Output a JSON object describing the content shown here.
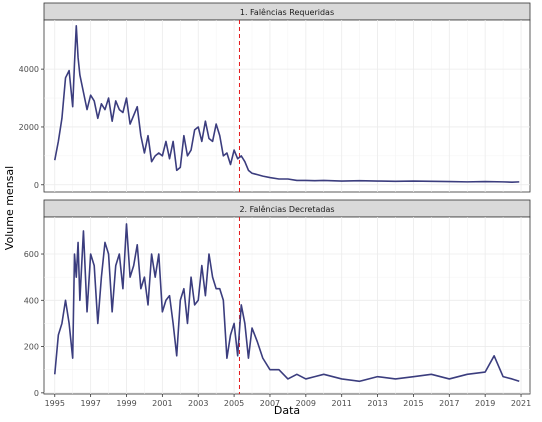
{
  "chart_data": {
    "type": "line",
    "xlabel": "Data",
    "ylabel": "Volume mensal",
    "x_range": [
      1994.4,
      2021.5
    ],
    "x_ticks": [
      "1995",
      "1997",
      "1999",
      "2001",
      "2003",
      "2005",
      "2007",
      "2009",
      "2011",
      "2013",
      "2015",
      "2017",
      "2019",
      "2021"
    ],
    "vline": {
      "x": 2005.3,
      "style": "dashed",
      "color": "#e41a1c"
    },
    "grid": true,
    "line_color": "#3b3d7e",
    "facets": [
      {
        "strip": "1. Falências Requeridas",
        "ylim": [
          -250,
          5700
        ],
        "y_ticks": [
          0,
          2000,
          4000
        ],
        "x": [
          1995.0,
          1995.2,
          1995.4,
          1995.6,
          1995.8,
          1996.0,
          1996.1,
          1996.2,
          1996.3,
          1996.4,
          1996.6,
          1996.8,
          1997.0,
          1997.2,
          1997.4,
          1997.6,
          1997.8,
          1998.0,
          1998.2,
          1998.4,
          1998.6,
          1998.8,
          1999.0,
          1999.2,
          1999.4,
          1999.6,
          1999.8,
          2000.0,
          2000.2,
          2000.4,
          2000.6,
          2000.8,
          2001.0,
          2001.2,
          2001.4,
          2001.6,
          2001.8,
          2002.0,
          2002.2,
          2002.4,
          2002.6,
          2002.8,
          2003.0,
          2003.2,
          2003.4,
          2003.6,
          2003.8,
          2004.0,
          2004.2,
          2004.4,
          2004.6,
          2004.8,
          2005.0,
          2005.2,
          2005.4,
          2005.6,
          2005.8,
          2006.0,
          2006.3,
          2006.6,
          2007.0,
          2007.5,
          2008.0,
          2008.5,
          2009.0,
          2009.5,
          2010.0,
          2011.0,
          2012.0,
          2013.0,
          2014.0,
          2015.0,
          2016.0,
          2017.0,
          2018.0,
          2019.0,
          2020.0,
          2020.5,
          2020.9
        ],
        "values": [
          850,
          1500,
          2300,
          3700,
          3950,
          2700,
          4200,
          5500,
          4400,
          3800,
          3200,
          2600,
          3100,
          2900,
          2300,
          2800,
          2600,
          3000,
          2200,
          2900,
          2600,
          2500,
          3000,
          2100,
          2400,
          2700,
          1700,
          1100,
          1700,
          800,
          1000,
          1100,
          1000,
          1500,
          900,
          1500,
          500,
          600,
          1700,
          1000,
          1200,
          1900,
          2000,
          1500,
          2200,
          1600,
          1500,
          2100,
          1700,
          1000,
          1100,
          700,
          1200,
          900,
          1000,
          800,
          500,
          400,
          350,
          300,
          250,
          200,
          200,
          150,
          150,
          140,
          150,
          130,
          140,
          130,
          120,
          130,
          120,
          110,
          100,
          110,
          100,
          90,
          100
        ]
      },
      {
        "strip": "2. Falências Decretadas",
        "ylim": [
          -5,
          760
        ],
        "y_ticks": [
          0,
          200,
          400,
          600
        ],
        "x": [
          1995.0,
          1995.2,
          1995.4,
          1995.6,
          1995.8,
          1996.0,
          1996.1,
          1996.2,
          1996.3,
          1996.4,
          1996.6,
          1996.8,
          1997.0,
          1997.2,
          1997.4,
          1997.6,
          1997.8,
          1998.0,
          1998.2,
          1998.4,
          1998.6,
          1998.8,
          1999.0,
          1999.2,
          1999.4,
          1999.6,
          1999.8,
          2000.0,
          2000.2,
          2000.4,
          2000.6,
          2000.8,
          2001.0,
          2001.2,
          2001.4,
          2001.6,
          2001.8,
          2002.0,
          2002.2,
          2002.4,
          2002.6,
          2002.8,
          2003.0,
          2003.2,
          2003.4,
          2003.6,
          2003.8,
          2004.0,
          2004.2,
          2004.4,
          2004.6,
          2004.8,
          2005.0,
          2005.2,
          2005.4,
          2005.6,
          2005.8,
          2006.0,
          2006.3,
          2006.6,
          2007.0,
          2007.5,
          2008.0,
          2008.5,
          2009.0,
          2009.5,
          2010.0,
          2011.0,
          2012.0,
          2013.0,
          2014.0,
          2015.0,
          2016.0,
          2017.0,
          2018.0,
          2019.0,
          2019.5,
          2020.0,
          2020.5,
          2020.9
        ],
        "values": [
          80,
          250,
          300,
          400,
          300,
          150,
          600,
          500,
          650,
          400,
          700,
          350,
          600,
          550,
          300,
          500,
          650,
          600,
          350,
          550,
          600,
          450,
          730,
          500,
          550,
          640,
          450,
          500,
          380,
          600,
          500,
          600,
          350,
          400,
          420,
          300,
          160,
          400,
          450,
          300,
          500,
          380,
          400,
          550,
          420,
          600,
          500,
          450,
          450,
          400,
          150,
          250,
          300,
          160,
          380,
          300,
          150,
          280,
          220,
          150,
          100,
          100,
          60,
          80,
          60,
          70,
          80,
          60,
          50,
          70,
          60,
          70,
          80,
          60,
          80,
          90,
          160,
          70,
          60,
          50
        ]
      }
    ]
  }
}
